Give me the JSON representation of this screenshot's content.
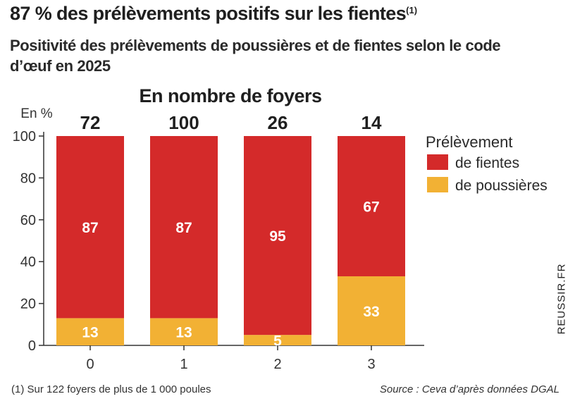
{
  "header": {
    "headline": "87 % des prélèvements positifs sur les fientes",
    "headline_note": "(1)",
    "subtitle": "Positivité des prélèvements de poussières et de fientes selon le code d’œuf en 2025"
  },
  "chart_data": {
    "type": "bar",
    "stacked": true,
    "y_unit_label": "En %",
    "count_header": "En nombre de foyers",
    "categories": [
      "0",
      "1",
      "2",
      "3"
    ],
    "counts": [
      "72",
      "100",
      "26",
      "14"
    ],
    "series": [
      {
        "name": "de poussières",
        "values": [
          13,
          13,
          5,
          33
        ],
        "color": "#f2b134"
      },
      {
        "name": "de fientes",
        "values": [
          87,
          87,
          95,
          67
        ],
        "color": "#d42a2a"
      }
    ],
    "ylim": [
      0,
      100
    ],
    "yticks": [
      0,
      20,
      40,
      60,
      80,
      100
    ],
    "legend_title": "Prélèvement",
    "legend_placement": "right",
    "legend_order": [
      "de fientes",
      "de poussières"
    ],
    "grid": false
  },
  "footer": {
    "footnote": "(1) Sur 122 foyers de plus de 1 000 poules",
    "source": "Source : Ceva d’après données DGAL",
    "brand": "REUSSIR.FR"
  }
}
